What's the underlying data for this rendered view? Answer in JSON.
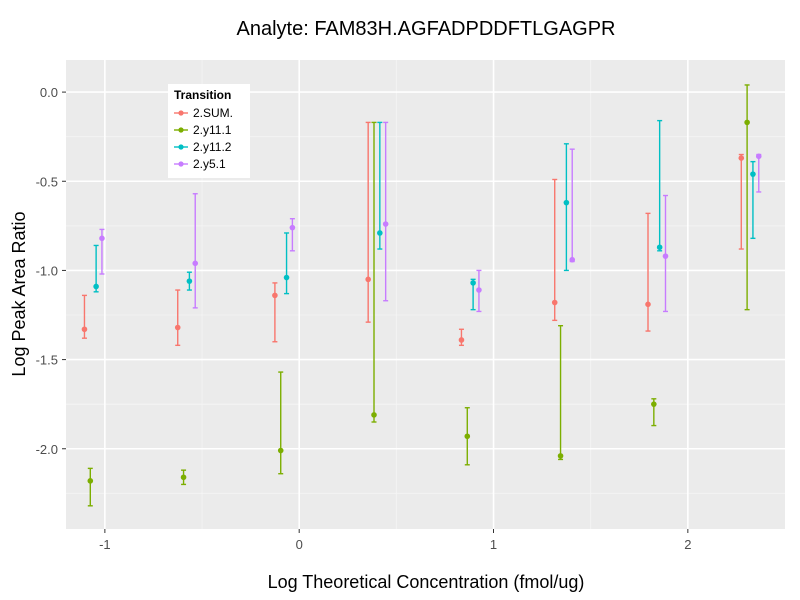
{
  "chart_data": {
    "type": "scatter",
    "title": "Analyte: FAM83H.AGFADPDDFTLGAGPR",
    "xlabel": "Log Theoretical Concentration (fmol/ug)",
    "ylabel": "Log Peak Area Ratio",
    "xlim": [
      -1.2,
      2.5
    ],
    "ylim": [
      -2.45,
      0.18
    ],
    "x_ticks": [
      -1,
      0,
      1,
      2
    ],
    "x_tick_labels": [
      "-1",
      "0",
      "1",
      "2"
    ],
    "y_ticks": [
      0.0,
      -0.5,
      -1.0,
      -1.5,
      -2.0
    ],
    "y_tick_labels": [
      "0.0",
      "-0.5",
      "-1.0",
      "-1.5",
      "-2.0"
    ],
    "grid": true,
    "error_bars": true,
    "legend": {
      "title": "Transition",
      "position": "top-left"
    },
    "x_categories": [
      -1.06,
      -0.58,
      -0.08,
      0.4,
      0.88,
      1.36,
      1.84,
      2.32
    ],
    "series": [
      {
        "name": "2.SUM.",
        "color": "#F8766D",
        "x_offset": -0.045,
        "points": [
          {
            "x": -1.06,
            "y": -1.33,
            "ymin": -1.38,
            "ymax": -1.14
          },
          {
            "x": -0.58,
            "y": -1.32,
            "ymin": -1.42,
            "ymax": -1.11
          },
          {
            "x": -0.08,
            "y": -1.14,
            "ymin": -1.4,
            "ymax": -1.07
          },
          {
            "x": 0.4,
            "y": -1.05,
            "ymin": -1.29,
            "ymax": -0.17
          },
          {
            "x": 0.88,
            "y": -1.39,
            "ymin": -1.42,
            "ymax": -1.33
          },
          {
            "x": 1.36,
            "y": -1.18,
            "ymin": -1.28,
            "ymax": -0.49
          },
          {
            "x": 1.84,
            "y": -1.19,
            "ymin": -1.34,
            "ymax": -0.68
          },
          {
            "x": 2.32,
            "y": -0.37,
            "ymin": -0.88,
            "ymax": -0.35
          }
        ]
      },
      {
        "name": "2.y11.1",
        "color": "#7CAE00",
        "x_offset": -0.015,
        "points": [
          {
            "x": -1.06,
            "y": -2.18,
            "ymin": -2.32,
            "ymax": -2.11
          },
          {
            "x": -0.58,
            "y": -2.16,
            "ymin": -2.2,
            "ymax": -2.12
          },
          {
            "x": -0.08,
            "y": -2.01,
            "ymin": -2.14,
            "ymax": -1.57
          },
          {
            "x": 0.4,
            "y": -1.81,
            "ymin": -1.85,
            "ymax": -0.17
          },
          {
            "x": 0.88,
            "y": -1.93,
            "ymin": -2.09,
            "ymax": -1.77
          },
          {
            "x": 1.36,
            "y": -2.04,
            "ymin": -2.06,
            "ymax": -1.31
          },
          {
            "x": 1.84,
            "y": -1.75,
            "ymin": -1.87,
            "ymax": -1.72
          },
          {
            "x": 2.32,
            "y": -0.17,
            "ymin": -1.22,
            "ymax": 0.04
          }
        ]
      },
      {
        "name": "2.y11.2",
        "color": "#00BFC4",
        "x_offset": 0.015,
        "points": [
          {
            "x": -1.06,
            "y": -1.09,
            "ymin": -1.12,
            "ymax": -0.86
          },
          {
            "x": -0.58,
            "y": -1.06,
            "ymin": -1.11,
            "ymax": -1.01
          },
          {
            "x": -0.08,
            "y": -1.04,
            "ymin": -1.13,
            "ymax": -0.79
          },
          {
            "x": 0.4,
            "y": -0.79,
            "ymin": -0.88,
            "ymax": -0.17
          },
          {
            "x": 0.88,
            "y": -1.07,
            "ymin": -1.22,
            "ymax": -1.05
          },
          {
            "x": 1.36,
            "y": -0.62,
            "ymin": -1.0,
            "ymax": -0.29
          },
          {
            "x": 1.84,
            "y": -0.87,
            "ymin": -0.89,
            "ymax": -0.16
          },
          {
            "x": 2.32,
            "y": -0.46,
            "ymin": -0.82,
            "ymax": -0.39
          }
        ]
      },
      {
        "name": "2.y5.1",
        "color": "#C77CFF",
        "x_offset": 0.045,
        "points": [
          {
            "x": -1.06,
            "y": -0.82,
            "ymin": -1.02,
            "ymax": -0.77
          },
          {
            "x": -0.58,
            "y": -0.96,
            "ymin": -1.21,
            "ymax": -0.57
          },
          {
            "x": -0.08,
            "y": -0.76,
            "ymin": -0.89,
            "ymax": -0.71
          },
          {
            "x": 0.4,
            "y": -0.74,
            "ymin": -1.17,
            "ymax": -0.17
          },
          {
            "x": 0.88,
            "y": -1.11,
            "ymin": -1.23,
            "ymax": -1.0
          },
          {
            "x": 1.36,
            "y": -0.94,
            "ymin": -0.95,
            "ymax": -0.32
          },
          {
            "x": 1.84,
            "y": -0.92,
            "ymin": -1.23,
            "ymax": -0.58
          },
          {
            "x": 2.32,
            "y": -0.36,
            "ymin": -0.56,
            "ymax": -0.35
          }
        ]
      }
    ]
  }
}
